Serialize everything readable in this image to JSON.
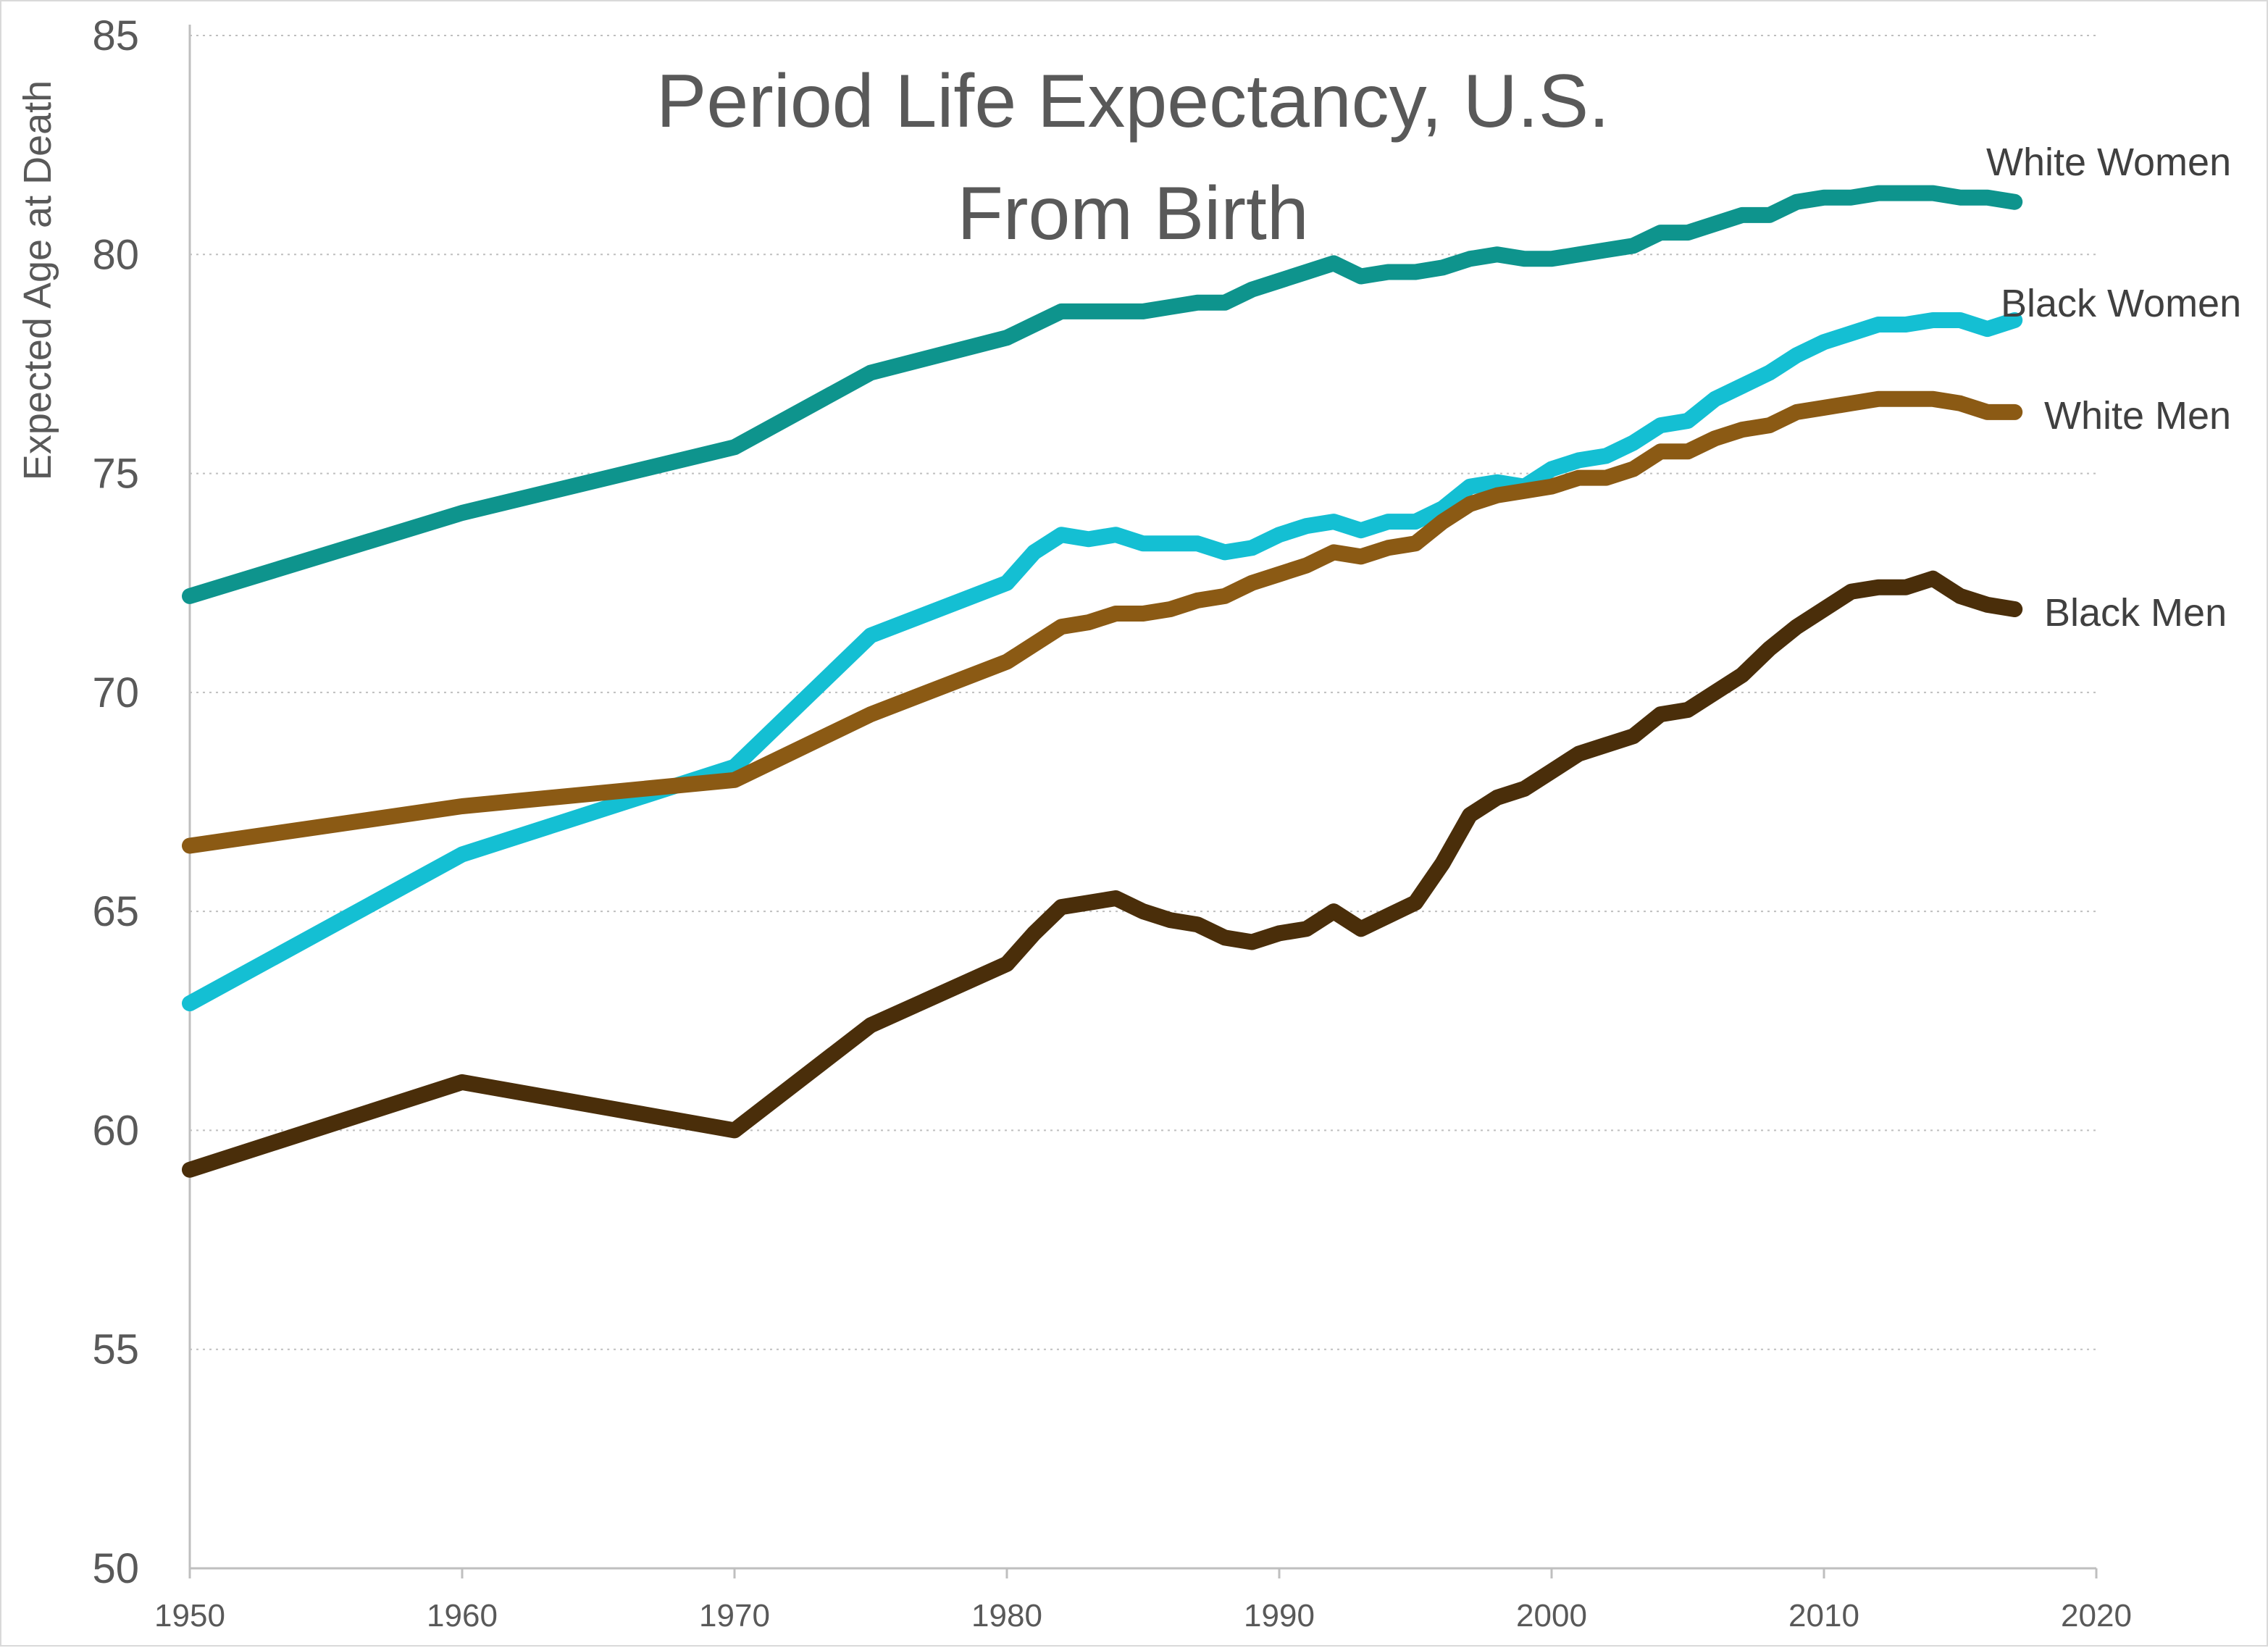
{
  "chart_data": {
    "type": "line",
    "title_lines": [
      "Period Life Expectancy, U.S.",
      "From Birth"
    ],
    "xlabel": "",
    "ylabel": "Expected Age at Death",
    "xlim": [
      1950,
      2020
    ],
    "ylim": [
      50,
      85
    ],
    "x_ticks": [
      "1950",
      "1960",
      "1970",
      "1980",
      "1990",
      "2000",
      "2010",
      "2020"
    ],
    "y_ticks": [
      "50",
      "55",
      "60",
      "65",
      "70",
      "75",
      "80",
      "85"
    ],
    "grid": "horizontal-dotted",
    "legend": "labels at line ends",
    "x": [
      1950,
      1960,
      1970,
      1975,
      1980,
      1981,
      1982,
      1983,
      1984,
      1985,
      1986,
      1987,
      1988,
      1989,
      1990,
      1991,
      1992,
      1993,
      1994,
      1995,
      1996,
      1997,
      1998,
      1999,
      2000,
      2001,
      2002,
      2003,
      2004,
      2005,
      2006,
      2007,
      2008,
      2009,
      2010,
      2011,
      2012,
      2013,
      2014,
      2015,
      2016,
      2017
    ],
    "series": [
      {
        "name": "White Women",
        "color": "#0e948d",
        "values": [
          72.2,
          74.1,
          75.6,
          77.3,
          78.1,
          78.4,
          78.7,
          78.7,
          78.7,
          78.7,
          78.8,
          78.9,
          78.9,
          79.2,
          79.4,
          79.6,
          79.8,
          79.5,
          79.6,
          79.6,
          79.7,
          79.9,
          80.0,
          79.9,
          79.9,
          80.0,
          80.1,
          80.2,
          80.5,
          80.5,
          80.7,
          80.9,
          80.9,
          81.2,
          81.3,
          81.3,
          81.4,
          81.4,
          81.4,
          81.3,
          81.3,
          81.2
        ]
      },
      {
        "name": "Black Women",
        "color": "#14bfd3",
        "values": [
          62.9,
          66.3,
          68.3,
          71.3,
          72.5,
          73.2,
          73.6,
          73.5,
          73.6,
          73.4,
          73.4,
          73.4,
          73.2,
          73.3,
          73.6,
          73.8,
          73.9,
          73.7,
          73.9,
          73.9,
          74.2,
          74.7,
          74.8,
          74.7,
          75.1,
          75.3,
          75.4,
          75.7,
          76.1,
          76.2,
          76.7,
          77.0,
          77.3,
          77.7,
          78.0,
          78.2,
          78.4,
          78.4,
          78.5,
          78.5,
          78.3,
          78.5
        ]
      },
      {
        "name": "White Men",
        "color": "#8b5a14",
        "values": [
          66.5,
          67.4,
          68.0,
          69.5,
          70.7,
          71.1,
          71.5,
          71.6,
          71.8,
          71.8,
          71.9,
          72.1,
          72.2,
          72.5,
          72.7,
          72.9,
          73.2,
          73.1,
          73.3,
          73.4,
          73.9,
          74.3,
          74.5,
          74.6,
          74.7,
          74.9,
          74.9,
          75.1,
          75.5,
          75.5,
          75.8,
          76.0,
          76.1,
          76.4,
          76.5,
          76.6,
          76.7,
          76.7,
          76.7,
          76.6,
          76.4,
          76.4
        ]
      },
      {
        "name": "Black Men",
        "color": "#4a2e0a",
        "values": [
          59.1,
          61.1,
          60.0,
          62.4,
          63.8,
          64.5,
          65.1,
          65.2,
          65.3,
          65.0,
          64.8,
          64.7,
          64.4,
          64.3,
          64.5,
          64.6,
          65.0,
          64.6,
          64.9,
          65.2,
          66.1,
          67.2,
          67.6,
          67.8,
          68.2,
          68.6,
          68.8,
          69.0,
          69.5,
          69.6,
          70.0,
          70.4,
          71.0,
          71.5,
          71.9,
          72.3,
          72.4,
          72.4,
          72.6,
          72.2,
          72.0,
          71.9
        ]
      }
    ]
  }
}
